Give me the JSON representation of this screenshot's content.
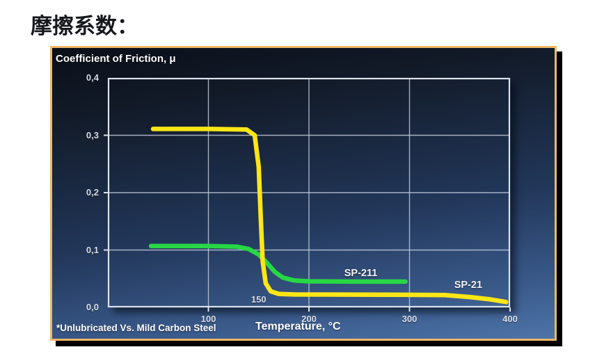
{
  "title": "摩擦系数：",
  "chart": {
    "header": "Coefficient of Friction, μ",
    "footnote": "*Unlubricated Vs. Mild Carbon Steel",
    "xlabel": "Temperature, °C",
    "panel_border_color": "#eeb969",
    "grid_color": "#c9d2e0",
    "frame_color": "#dde3ec",
    "tick_text_color": "#d9dee8"
  },
  "chart_data": {
    "type": "line",
    "title": "Coefficient of Friction, μ",
    "xlabel": "Temperature, °C",
    "ylabel": "Coefficient of Friction, μ",
    "xlim": [
      0,
      400
    ],
    "ylim": [
      0,
      0.4
    ],
    "grid": true,
    "legend_position": "inline-labels",
    "x_ticks": [
      {
        "value": 100,
        "label": "100",
        "grid": true,
        "tick": true,
        "side": "below"
      },
      {
        "value": 150,
        "label": "150",
        "grid": false,
        "tick": false,
        "side": "above"
      },
      {
        "value": 200,
        "label": "200",
        "grid": true,
        "tick": true,
        "side": "below"
      },
      {
        "value": 300,
        "label": "300",
        "grid": true,
        "tick": true,
        "side": "below"
      },
      {
        "value": 400,
        "label": "400",
        "grid": false,
        "tick": true,
        "side": "below"
      }
    ],
    "y_ticks": [
      {
        "value": 0.4,
        "label": "0,4",
        "grid": false,
        "tick": false
      },
      {
        "value": 0.3,
        "label": "0,3",
        "grid": true,
        "tick": true
      },
      {
        "value": 0.2,
        "label": "0,2",
        "grid": true,
        "tick": true
      },
      {
        "value": 0.1,
        "label": "0,1",
        "grid": true,
        "tick": true
      },
      {
        "value": 0.0,
        "label": "0,0",
        "grid": false,
        "tick": false
      }
    ],
    "series": [
      {
        "name": "SP-211",
        "color": "#27d845",
        "label_pos": {
          "x_pct": 62.9,
          "y_pct": 85.3
        },
        "points": [
          [
            43,
            0.107
          ],
          [
            100,
            0.107
          ],
          [
            128,
            0.106
          ],
          [
            140,
            0.102
          ],
          [
            150,
            0.092
          ],
          [
            158,
            0.078
          ],
          [
            166,
            0.062
          ],
          [
            174,
            0.052
          ],
          [
            185,
            0.047
          ],
          [
            200,
            0.0455
          ],
          [
            250,
            0.045
          ],
          [
            296,
            0.045
          ]
        ]
      },
      {
        "name": "SP-21",
        "color": "#ffe616",
        "label_pos": {
          "x_pct": 89.6,
          "y_pct": 90.3
        },
        "points": [
          [
            45,
            0.311
          ],
          [
            100,
            0.311
          ],
          [
            138,
            0.31
          ],
          [
            146,
            0.3
          ],
          [
            150,
            0.245
          ],
          [
            152,
            0.16
          ],
          [
            154,
            0.08
          ],
          [
            157,
            0.042
          ],
          [
            162,
            0.028
          ],
          [
            170,
            0.0235
          ],
          [
            185,
            0.0225
          ],
          [
            300,
            0.022
          ],
          [
            335,
            0.0215
          ],
          [
            360,
            0.018
          ],
          [
            380,
            0.014
          ],
          [
            396,
            0.0095
          ]
        ]
      }
    ]
  }
}
